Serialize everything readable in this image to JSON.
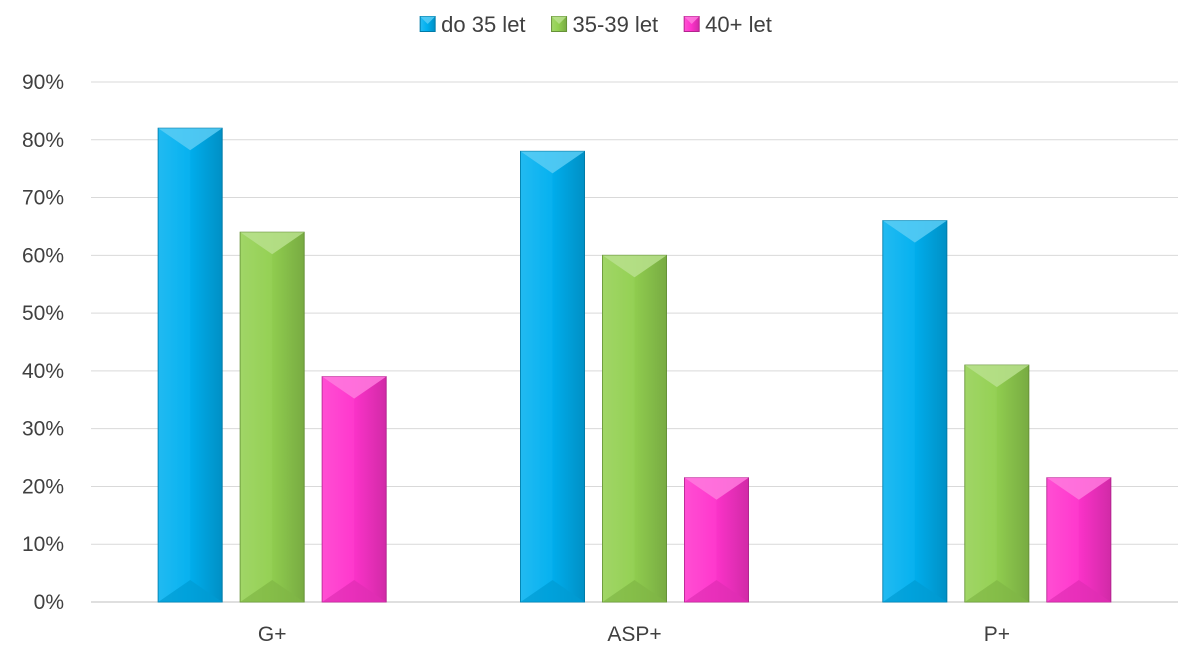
{
  "chart_data": {
    "type": "bar",
    "title": "",
    "xlabel": "",
    "ylabel": "",
    "categories": [
      "G+",
      "ASP+",
      "P+"
    ],
    "series": [
      {
        "name": "do 35 let",
        "values": [
          82,
          78,
          66
        ],
        "color": "#00b0f0"
      },
      {
        "name": "35-39 let",
        "values": [
          64,
          60,
          41
        ],
        "color": "#92d050"
      },
      {
        "name": "40+ let",
        "values": [
          39,
          21.5,
          21.5
        ],
        "color": "#ff33cc"
      }
    ],
    "ylim": [
      0,
      90
    ],
    "yticks": [
      0,
      10,
      20,
      30,
      40,
      50,
      60,
      70,
      80,
      90
    ],
    "ytick_labels": [
      "0%",
      "10%",
      "20%",
      "30%",
      "40%",
      "50%",
      "60%",
      "70%",
      "80%",
      "90%"
    ],
    "grid": true,
    "legend_position": "top"
  }
}
